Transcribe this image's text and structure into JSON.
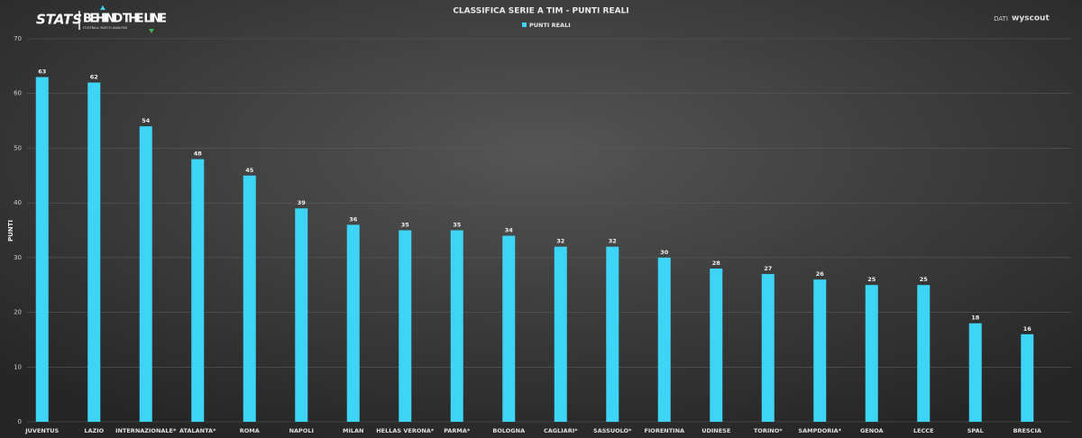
{
  "chart_data": {
    "type": "bar",
    "title": "CLASSIFICA SERIE A TIM - PUNTI REALI",
    "brand": {
      "stats": "STATS",
      "name": "BEHIND THE LINE",
      "tagline": "FOOTBALL MATCH ANALYSIS",
      "source_prefix": "DATI",
      "source": "wyscout"
    },
    "y_label": "PUNTI",
    "categories": [
      "JUVENTUS",
      "LAZIO",
      "INTERNAZIONALE*",
      "ATALANTA*",
      "ROMA",
      "NAPOLI",
      "MILAN",
      "HELLAS VERONA*",
      "PARMA*",
      "BOLOGNA",
      "CAGLIARI*",
      "SASSUOLO*",
      "FIORENTINA",
      "UDINESE",
      "TORINO*",
      "SAMPDORIA*",
      "GENOA",
      "LECCE",
      "SPAL",
      "BRESCIA"
    ],
    "series": [
      {
        "name": "PUNTI REALI",
        "color": "#3dd4f5",
        "values": [
          63,
          62,
          54,
          48,
          45,
          39,
          36,
          35,
          35,
          34,
          32,
          32,
          30,
          28,
          27,
          26,
          25,
          25,
          18,
          16
        ]
      }
    ],
    "ylim": [
      0,
      70
    ],
    "yticks": [
      0,
      10,
      20,
      30,
      40,
      50,
      60,
      70
    ],
    "grid": true,
    "legend": "top"
  }
}
